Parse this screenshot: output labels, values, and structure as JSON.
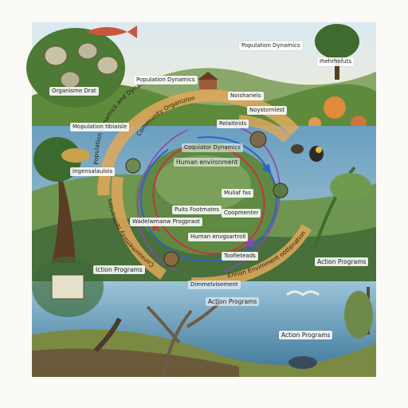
{
  "top_labels": {
    "population_dynamics_top": "Population Dynamics",
    "top_right": "Ihehrhofuts",
    "organisme_drat": "Organisme Drat",
    "population_dynamics_mid": "Population Dynamics",
    "noishariels": "Noishariels",
    "noystornlest": "Noystornlest"
  },
  "band_labels": {
    "mopulation_tibiaisle": "Mopulation tibiaisle",
    "relaiteids": "Relaiteids",
    "ingensalaulois": "Ingensalaulois",
    "action_programs_right": "Action Programs",
    "action_programs_left": "Iction Programs",
    "action_programs_bottom": "Action Programs",
    "action_programs_lower_right": "Action Programs"
  },
  "cycle": {
    "arc_top_1": "Population Dynamics and Dynamics",
    "arc_top_2": "Community Organizion",
    "arc_right_top": "Grosvig tites",
    "arc_left": "Consuumemnty termenses",
    "arc_bottom": "Enrion Envirnment oottenation",
    "arc_bottom_left": "Dimmelvisement",
    "center_1": "Coquiator Dynamics",
    "center_2": "Human environment",
    "center_3": "Muliaf fas",
    "center_4": "Puits Footmates",
    "center_5": "Coopmenter",
    "center_6": "Wadelwmanw Progpraot",
    "center_7": "Human envgsartroll",
    "center_8": "Toofieteads"
  },
  "colors": {
    "sky": "#cfe3ef",
    "forest": "#3f6b2e",
    "sea": "#2f6f93",
    "arc_band": "#e2a85a",
    "arrow_blue": "#2d63c8",
    "arrow_red": "#c8323f",
    "arrow_purple": "#8a45b8"
  }
}
